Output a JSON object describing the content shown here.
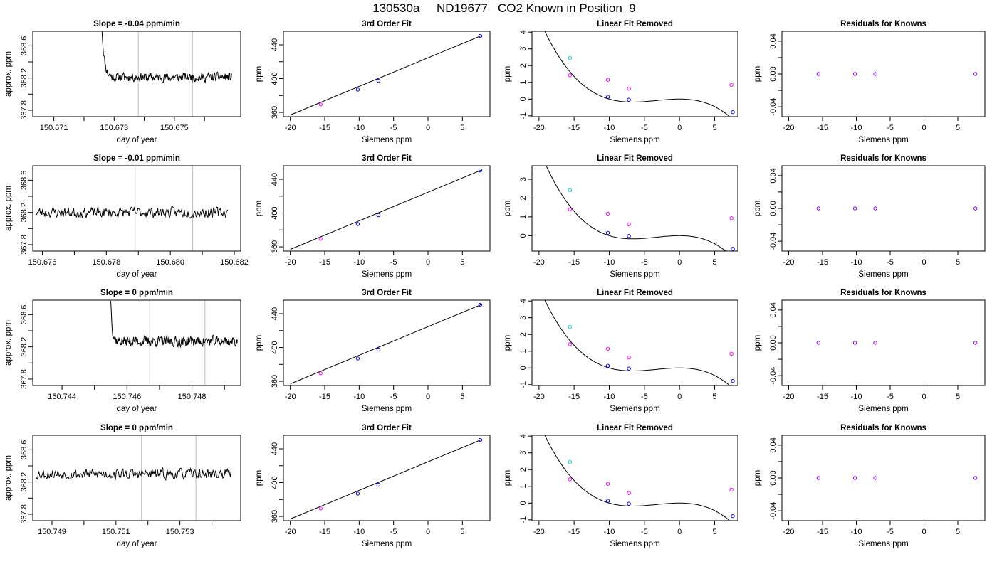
{
  "figure": {
    "title": "130530a     ND19677   CO2 Known in Position  9"
  },
  "colors": {
    "line": "#000000",
    "vline": "#bebebe",
    "magenta": "#ff00ff",
    "cyan": "#00cccc",
    "blue": "#0000ff",
    "purple": "#8000ff"
  },
  "chart_data": [
    {
      "type": "line",
      "panel": "ts",
      "row": 0,
      "title": "Slope =  -0.04  ppm/min",
      "xlabel": "day of year",
      "ylabel": "approx. ppm",
      "xlim": [
        150.6703,
        150.6772
      ],
      "ylim": [
        367.72,
        368.78
      ],
      "xticks": [
        150.671,
        150.672,
        150.673,
        150.674,
        150.675,
        150.676
      ],
      "xticklabels": [
        "150.671",
        "",
        "150.673",
        "",
        "150.675",
        ""
      ],
      "yticks": [
        367.8,
        368.0,
        368.2,
        368.4,
        368.6
      ],
      "yticklabels": [
        "367.8",
        "",
        "368.2",
        "",
        "368.6"
      ],
      "vlines": [
        150.6738,
        150.6756
      ],
      "start": 150.6726,
      "end": 150.6769,
      "startlevel": 368.8,
      "baseline": 368.21,
      "amp": 0.06,
      "decay": 0.9,
      "seed": 11
    },
    {
      "type": "scatter",
      "panel": "fit",
      "row": 0,
      "title": "3rd Order Fit",
      "xlabel": "Siemens ppm",
      "ylabel": "ppm",
      "xlim": [
        -21,
        9
      ],
      "ylim": [
        355,
        456
      ],
      "xticks": [
        -20,
        -15,
        -10,
        -5,
        0,
        5
      ],
      "yticks": [
        360,
        380,
        400,
        420,
        440
      ],
      "yticklabels": [
        "360",
        "",
        "400",
        "",
        "440"
      ],
      "points": [
        {
          "x": -15.6,
          "y": 369.5
        },
        {
          "x": -10.2,
          "y": 387.0
        },
        {
          "x": -7.2,
          "y": 397.5
        },
        {
          "x": 7.6,
          "y": 450.5
        }
      ],
      "fit": {
        "x0": -20,
        "y0": 357,
        "x1": 7.8,
        "y1": 451
      }
    },
    {
      "type": "scatter",
      "panel": "lin",
      "row": 0,
      "title": "Linear Fit Removed",
      "xlabel": "Siemens ppm",
      "ylabel": "ppm",
      "xlim": [
        -21,
        8.3
      ],
      "ylim": [
        -1.05,
        4.05
      ],
      "xticks": [
        -20,
        -15,
        -10,
        -5,
        0,
        5
      ],
      "yticks": [
        -1,
        0,
        1,
        2,
        3,
        4
      ],
      "curve": {
        "a": -0.0012,
        "b": -0.012,
        "x0": -20,
        "x1": 8
      },
      "points": [
        {
          "x": -15.6,
          "y": 2.45,
          "c": "cyan"
        },
        {
          "x": -15.6,
          "y": 1.42,
          "c": "magenta"
        },
        {
          "x": -10.2,
          "y": 1.15,
          "c": "magenta"
        },
        {
          "x": -7.2,
          "y": 0.62,
          "c": "magenta"
        },
        {
          "x": 7.4,
          "y": 0.85,
          "c": "magenta"
        },
        {
          "x": -10.2,
          "y": 0.13,
          "c": "blue"
        },
        {
          "x": -7.2,
          "y": -0.04,
          "c": "blue"
        },
        {
          "x": 7.6,
          "y": -0.78,
          "c": "blue"
        }
      ]
    },
    {
      "type": "scatter",
      "panel": "res",
      "row": 0,
      "title": "Residuals for Knowns",
      "xlabel": "Siemens ppm",
      "ylabel": "ppm",
      "xlim": [
        -21,
        9
      ],
      "ylim": [
        -0.052,
        0.052
      ],
      "xticks": [
        -20,
        -15,
        -10,
        -5,
        0,
        5
      ],
      "yticks": [
        -0.04,
        -0.02,
        0,
        0.02,
        0.04
      ],
      "yticklabels": [
        "-0.04",
        "",
        "0.00",
        "",
        "0.04"
      ],
      "points": [
        {
          "x": -15.6,
          "y": 0
        },
        {
          "x": -10.2,
          "y": 0
        },
        {
          "x": -7.2,
          "y": 0
        },
        {
          "x": 7.6,
          "y": 0
        }
      ]
    },
    {
      "type": "line",
      "panel": "ts",
      "row": 1,
      "title": "Slope =  -0.01  ppm/min",
      "xlabel": "day of year",
      "ylabel": "approx. ppm",
      "xlim": [
        150.6757,
        150.6822
      ],
      "ylim": [
        367.72,
        368.78
      ],
      "xticks": [
        150.676,
        150.677,
        150.678,
        150.679,
        150.68,
        150.681,
        150.682
      ],
      "xticklabels": [
        "150.676",
        "",
        "150.678",
        "",
        "150.680",
        "",
        "150.682"
      ],
      "yticks": [
        367.8,
        368.0,
        368.2,
        368.4,
        368.6
      ],
      "yticklabels": [
        "367.8",
        "",
        "368.2",
        "",
        "368.6"
      ],
      "vlines": [
        150.6789,
        150.6807
      ],
      "start": 150.6758,
      "end": 150.6818,
      "startlevel": 368.17,
      "baseline": 368.2,
      "amp": 0.07,
      "decay": 0.0,
      "seed": 23
    },
    {
      "type": "scatter",
      "panel": "fit",
      "row": 1,
      "title": "3rd Order Fit",
      "xlabel": "Siemens ppm",
      "ylabel": "ppm",
      "xlim": [
        -21,
        9
      ],
      "ylim": [
        355,
        456
      ],
      "xticks": [
        -20,
        -15,
        -10,
        -5,
        0,
        5
      ],
      "yticks": [
        360,
        380,
        400,
        420,
        440
      ],
      "yticklabels": [
        "360",
        "",
        "400",
        "",
        "440"
      ],
      "points": [
        {
          "x": -15.6,
          "y": 369.5
        },
        {
          "x": -10.2,
          "y": 387.0
        },
        {
          "x": -7.2,
          "y": 397.5
        },
        {
          "x": 7.6,
          "y": 450.5
        }
      ],
      "fit": {
        "x0": -20,
        "y0": 357,
        "x1": 7.8,
        "y1": 451
      }
    },
    {
      "type": "scatter",
      "panel": "lin",
      "row": 1,
      "title": "Linear Fit Removed",
      "xlabel": "Siemens ppm",
      "ylabel": "ppm",
      "xlim": [
        -21,
        8.3
      ],
      "ylim": [
        -0.82,
        3.72
      ],
      "xticks": [
        -20,
        -15,
        -10,
        -5,
        0,
        5
      ],
      "yticks": [
        0,
        1,
        2,
        3
      ],
      "curve": {
        "a": -0.00115,
        "b": -0.0115,
        "x0": -20,
        "x1": 8
      },
      "points": [
        {
          "x": -15.6,
          "y": 2.42,
          "c": "cyan"
        },
        {
          "x": -15.6,
          "y": 1.4,
          "c": "magenta"
        },
        {
          "x": -10.2,
          "y": 1.17,
          "c": "magenta"
        },
        {
          "x": -7.2,
          "y": 0.6,
          "c": "magenta"
        },
        {
          "x": 7.4,
          "y": 0.93,
          "c": "magenta"
        },
        {
          "x": -10.2,
          "y": 0.15,
          "c": "blue"
        },
        {
          "x": -7.2,
          "y": -0.02,
          "c": "blue"
        },
        {
          "x": 7.6,
          "y": -0.7,
          "c": "blue"
        }
      ]
    },
    {
      "type": "scatter",
      "panel": "res",
      "row": 1,
      "title": "Residuals for Knowns",
      "xlabel": "Siemens ppm",
      "ylabel": "ppm",
      "xlim": [
        -21,
        9
      ],
      "ylim": [
        -0.052,
        0.052
      ],
      "xticks": [
        -20,
        -15,
        -10,
        -5,
        0,
        5
      ],
      "yticks": [
        -0.04,
        -0.02,
        0,
        0.02,
        0.04
      ],
      "yticklabels": [
        "-0.04",
        "",
        "0.00",
        "",
        "0.04"
      ],
      "points": [
        {
          "x": -15.6,
          "y": 0
        },
        {
          "x": -10.2,
          "y": 0
        },
        {
          "x": -7.2,
          "y": 0
        },
        {
          "x": 7.6,
          "y": 0
        }
      ]
    },
    {
      "type": "line",
      "panel": "ts",
      "row": 2,
      "title": "Slope =  0  ppm/min",
      "xlabel": "day of year",
      "ylabel": "approx. ppm",
      "xlim": [
        150.7431,
        150.7495
      ],
      "ylim": [
        367.72,
        368.78
      ],
      "xticks": [
        150.744,
        150.745,
        150.746,
        150.747,
        150.748,
        150.749
      ],
      "xticklabels": [
        "150.744",
        "",
        "150.746",
        "",
        "150.748",
        ""
      ],
      "yticks": [
        367.8,
        368.0,
        368.2,
        368.4,
        368.6
      ],
      "yticklabels": [
        "367.8",
        "",
        "368.2",
        "",
        "368.6"
      ],
      "vlines": [
        150.7467,
        150.7484
      ],
      "start": 150.7455,
      "end": 150.7494,
      "startlevel": 368.8,
      "baseline": 368.27,
      "amp": 0.07,
      "decay": 1.4,
      "seed": 37
    },
    {
      "type": "scatter",
      "panel": "fit",
      "row": 2,
      "title": "3rd Order Fit",
      "xlabel": "Siemens ppm",
      "ylabel": "ppm",
      "xlim": [
        -21,
        9
      ],
      "ylim": [
        355,
        456
      ],
      "xticks": [
        -20,
        -15,
        -10,
        -5,
        0,
        5
      ],
      "yticks": [
        360,
        380,
        400,
        420,
        440
      ],
      "yticklabels": [
        "360",
        "",
        "400",
        "",
        "440"
      ],
      "points": [
        {
          "x": -15.6,
          "y": 369.5
        },
        {
          "x": -10.2,
          "y": 387.0
        },
        {
          "x": -7.2,
          "y": 397.5
        },
        {
          "x": 7.6,
          "y": 450.5
        }
      ],
      "fit": {
        "x0": -20,
        "y0": 357,
        "x1": 7.8,
        "y1": 451
      }
    },
    {
      "type": "scatter",
      "panel": "lin",
      "row": 2,
      "title": "Linear Fit Removed",
      "xlabel": "Siemens ppm",
      "ylabel": "ppm",
      "xlim": [
        -21,
        8.3
      ],
      "ylim": [
        -1.05,
        4.05
      ],
      "xticks": [
        -20,
        -15,
        -10,
        -5,
        0,
        5
      ],
      "yticks": [
        -1,
        0,
        1,
        2,
        3,
        4
      ],
      "curve": {
        "a": -0.0012,
        "b": -0.012,
        "x0": -20,
        "x1": 8
      },
      "points": [
        {
          "x": -15.6,
          "y": 2.45,
          "c": "cyan"
        },
        {
          "x": -15.6,
          "y": 1.42,
          "c": "magenta"
        },
        {
          "x": -10.2,
          "y": 1.15,
          "c": "magenta"
        },
        {
          "x": -7.2,
          "y": 0.62,
          "c": "magenta"
        },
        {
          "x": 7.4,
          "y": 0.85,
          "c": "magenta"
        },
        {
          "x": -10.2,
          "y": 0.13,
          "c": "blue"
        },
        {
          "x": -7.2,
          "y": -0.04,
          "c": "blue"
        },
        {
          "x": 7.6,
          "y": -0.78,
          "c": "blue"
        }
      ]
    },
    {
      "type": "scatter",
      "panel": "res",
      "row": 2,
      "title": "Residuals for Knowns",
      "xlabel": "Siemens ppm",
      "ylabel": "ppm",
      "xlim": [
        -21,
        9
      ],
      "ylim": [
        -0.052,
        0.052
      ],
      "xticks": [
        -20,
        -15,
        -10,
        -5,
        0,
        5
      ],
      "yticks": [
        -0.04,
        -0.02,
        0,
        0.02,
        0.04
      ],
      "yticklabels": [
        "-0.04",
        "",
        "0.00",
        "",
        "0.04"
      ],
      "points": [
        {
          "x": -15.6,
          "y": 0
        },
        {
          "x": -10.2,
          "y": 0
        },
        {
          "x": -7.2,
          "y": 0
        },
        {
          "x": 7.6,
          "y": 0
        }
      ]
    },
    {
      "type": "line",
      "panel": "ts",
      "row": 3,
      "title": "Slope =  0  ppm/min",
      "xlabel": "day of year",
      "ylabel": "approx. ppm",
      "xlim": [
        150.7484,
        150.7549
      ],
      "ylim": [
        367.72,
        368.78
      ],
      "xticks": [
        150.749,
        150.75,
        150.751,
        150.752,
        150.753,
        150.754
      ],
      "xticklabels": [
        "150.749",
        "",
        "150.751",
        "",
        "150.753",
        ""
      ],
      "yticks": [
        367.8,
        368.0,
        368.2,
        368.4,
        368.6
      ],
      "yticklabels": [
        "367.8",
        "",
        "368.2",
        "",
        "368.6"
      ],
      "vlines": [
        150.7518,
        150.7535
      ],
      "start": 150.7485,
      "end": 150.7546,
      "startlevel": 368.3,
      "baseline": 368.3,
      "amp": 0.07,
      "decay": 0.0,
      "seed": 53
    },
    {
      "type": "scatter",
      "panel": "fit",
      "row": 3,
      "title": "3rd Order Fit",
      "xlabel": "Siemens ppm",
      "ylabel": "ppm",
      "xlim": [
        -21,
        9
      ],
      "ylim": [
        355,
        456
      ],
      "xticks": [
        -20,
        -15,
        -10,
        -5,
        0,
        5
      ],
      "yticks": [
        360,
        380,
        400,
        420,
        440
      ],
      "yticklabels": [
        "360",
        "",
        "400",
        "",
        "440"
      ],
      "points": [
        {
          "x": -15.6,
          "y": 369.5
        },
        {
          "x": -10.2,
          "y": 387.0
        },
        {
          "x": -7.2,
          "y": 397.5
        },
        {
          "x": 7.6,
          "y": 450.5
        }
      ],
      "fit": {
        "x0": -20,
        "y0": 357,
        "x1": 7.8,
        "y1": 451
      }
    },
    {
      "type": "scatter",
      "panel": "lin",
      "row": 3,
      "title": "Linear Fit Removed",
      "xlabel": "Siemens ppm",
      "ylabel": "ppm",
      "xlim": [
        -21,
        8.3
      ],
      "ylim": [
        -1.05,
        4.05
      ],
      "xticks": [
        -20,
        -15,
        -10,
        -5,
        0,
        5
      ],
      "yticks": [
        -1,
        0,
        1,
        2,
        3,
        4
      ],
      "curve": {
        "a": -0.0012,
        "b": -0.012,
        "x0": -20,
        "x1": 8
      },
      "points": [
        {
          "x": -15.6,
          "y": 2.45,
          "c": "cyan"
        },
        {
          "x": -15.6,
          "y": 1.42,
          "c": "magenta"
        },
        {
          "x": -10.2,
          "y": 1.15,
          "c": "magenta"
        },
        {
          "x": -7.2,
          "y": 0.6,
          "c": "magenta"
        },
        {
          "x": 7.4,
          "y": 0.8,
          "c": "magenta"
        },
        {
          "x": -10.2,
          "y": 0.13,
          "c": "blue"
        },
        {
          "x": -7.2,
          "y": -0.04,
          "c": "blue"
        },
        {
          "x": 7.6,
          "y": -0.78,
          "c": "blue"
        }
      ]
    },
    {
      "type": "scatter",
      "panel": "res",
      "row": 3,
      "title": "Residuals for Knowns",
      "xlabel": "Siemens ppm",
      "ylabel": "ppm",
      "xlim": [
        -21,
        9
      ],
      "ylim": [
        -0.052,
        0.052
      ],
      "xticks": [
        -20,
        -15,
        -10,
        -5,
        0,
        5
      ],
      "yticks": [
        -0.04,
        -0.02,
        0,
        0.02,
        0.04
      ],
      "yticklabels": [
        "-0.04",
        "",
        "0.00",
        "",
        "0.04"
      ],
      "points": [
        {
          "x": -15.6,
          "y": 0
        },
        {
          "x": -10.2,
          "y": 0
        },
        {
          "x": -7.2,
          "y": 0
        },
        {
          "x": 7.6,
          "y": 0
        }
      ]
    }
  ]
}
